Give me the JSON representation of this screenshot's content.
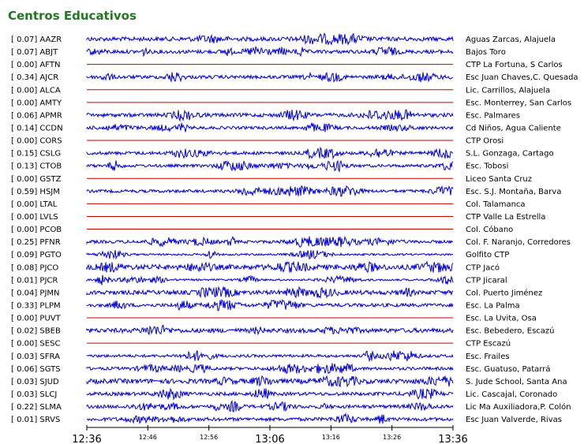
{
  "chart_data": {
    "type": "line",
    "title": "Centros Educativos",
    "x_axis": {
      "ticks": [
        {
          "label": "12:36",
          "major": true
        },
        {
          "label": "12:46",
          "major": false
        },
        {
          "label": "12:56",
          "major": false
        },
        {
          "label": "13:06",
          "major": true
        },
        {
          "label": "13:16",
          "major": false
        },
        {
          "label": "13:26",
          "major": false
        },
        {
          "label": "13:36",
          "major": true
        }
      ]
    },
    "colors": {
      "active": "#0000dd",
      "inactive": "#cc0000"
    },
    "series": [
      {
        "value": "0.07",
        "code": "AAZR",
        "name": "Aguas Zarcas, Alajuela"
      },
      {
        "value": "0.07",
        "code": "ABJT",
        "name": "Bajos Toro"
      },
      {
        "value": "0.00",
        "code": "AFTN",
        "name": "CTP La Fortuna, S Carlos"
      },
      {
        "value": "0.34",
        "code": "AJCR",
        "name": "Esc Juan Chaves,C. Quesada"
      },
      {
        "value": "0.00",
        "code": "ALCA",
        "name": "Lic. Carrillos, Alajuela"
      },
      {
        "value": "0.00",
        "code": "AMTY",
        "name": "Esc. Monterrey, San Carlos"
      },
      {
        "value": "0.06",
        "code": "APMR",
        "name": "Esc. Palmares"
      },
      {
        "value": "0.14",
        "code": "CCDN",
        "name": "Cd Niños, Agua Caliente"
      },
      {
        "value": "0.00",
        "code": "CORS",
        "name": "CTP Orosi"
      },
      {
        "value": "0.15",
        "code": "CSLG",
        "name": "S.L. Gonzaga, Cartago"
      },
      {
        "value": "0.13",
        "code": "CTOB",
        "name": "Esc. Tobosi"
      },
      {
        "value": "0.00",
        "code": "GSTZ",
        "name": "Liceo Santa Cruz"
      },
      {
        "value": "0.59",
        "code": "HSJM",
        "name": "Esc. S.J. Montaña, Barva"
      },
      {
        "value": "0.00",
        "code": "LTAL",
        "name": "Col. Talamanca"
      },
      {
        "value": "0.00",
        "code": "LVLS",
        "name": "CTP Valle La Estrella"
      },
      {
        "value": "0.00",
        "code": "PCOB",
        "name": "Col. Cóbano"
      },
      {
        "value": "0.25",
        "code": "PFNR",
        "name": "Col. F. Naranjo, Corredores"
      },
      {
        "value": "0.09",
        "code": "PGTO",
        "name": "Golfito CTP"
      },
      {
        "value": "0.08",
        "code": "PJCO",
        "name": "CTP Jacó"
      },
      {
        "value": "0.01",
        "code": "PJCR",
        "name": "CTP Jicaral"
      },
      {
        "value": "0.04",
        "code": "PJMN",
        "name": "Col. Puerto Jiménez"
      },
      {
        "value": "0.33",
        "code": "PLPM",
        "name": "Esc. La Palma"
      },
      {
        "value": "0.00",
        "code": "PUVT",
        "name": "Esc. La Uvita, Osa"
      },
      {
        "value": "0.02",
        "code": "SBEB",
        "name": "Esc. Bebedero, Escazú"
      },
      {
        "value": "0.00",
        "code": "SESC",
        "name": "CTP Escazú"
      },
      {
        "value": "0.03",
        "code": "SFRA",
        "name": "Esc. Frailes"
      },
      {
        "value": "0.06",
        "code": "SGTS",
        "name": "Esc. Guatuso, Patarrá"
      },
      {
        "value": "0.03",
        "code": "SJUD",
        "name": "S. Jude School, Santa Ana"
      },
      {
        "value": "0.03",
        "code": "SLCJ",
        "name": "Lic. Cascajal, Coronado"
      },
      {
        "value": "0.22",
        "code": "SLMA",
        "name": "Lic Ma Auxiliadora,P. Colón"
      },
      {
        "value": "0.01",
        "code": "SRVS",
        "name": "Esc Juan Valverde, Rivas"
      }
    ]
  }
}
